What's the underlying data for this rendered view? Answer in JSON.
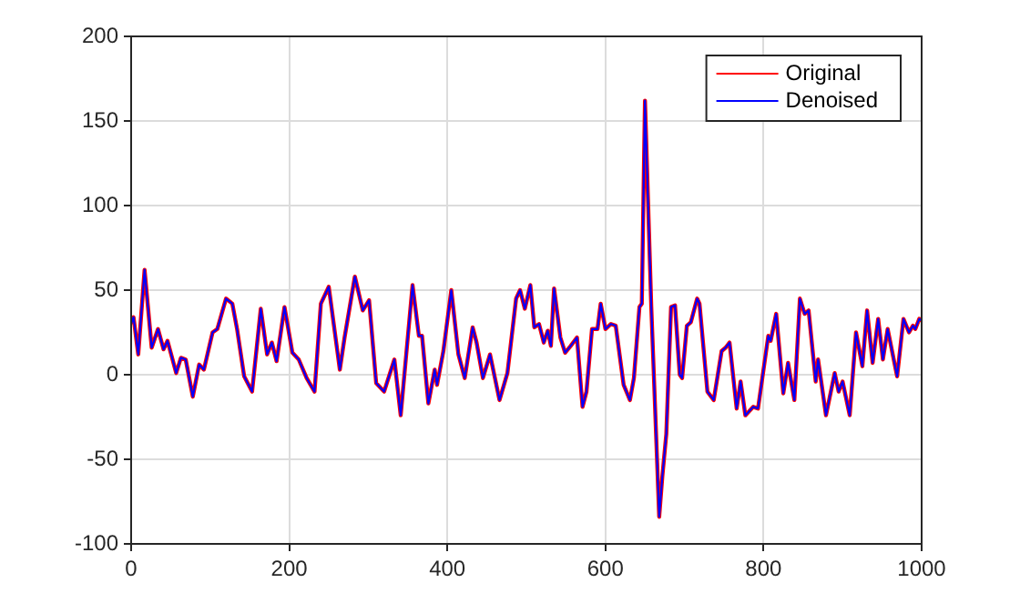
{
  "chart_data": {
    "type": "line",
    "xlim": [
      0,
      1000
    ],
    "xticks": [
      0,
      200,
      400,
      600,
      800,
      1000
    ],
    "ylim": [
      -100,
      200
    ],
    "yticks": [
      -100,
      -50,
      0,
      50,
      100,
      150,
      200
    ],
    "grid": true,
    "legend": "top right",
    "line_style": "solid",
    "marker": "none",
    "x": [
      0,
      3,
      9,
      17,
      26,
      34,
      41,
      46,
      57,
      63,
      69,
      78,
      86,
      92,
      103,
      109,
      120,
      128,
      134,
      143,
      153,
      164,
      172,
      178,
      184,
      194,
      204,
      212,
      222,
      232,
      240,
      250,
      264,
      270,
      283,
      293,
      301,
      310,
      320,
      333,
      341,
      356,
      364,
      368,
      376,
      384,
      387,
      395,
      405,
      414,
      422,
      432,
      437,
      445,
      454,
      466,
      476,
      487,
      492,
      498,
      505,
      510,
      516,
      522,
      527,
      531,
      535,
      543,
      549,
      556,
      564,
      571,
      576,
      583,
      590,
      594,
      600,
      607,
      613,
      623,
      631,
      636,
      643,
      646,
      650,
      658,
      668,
      672,
      677,
      683,
      688,
      694,
      697,
      703,
      708,
      716,
      719,
      729,
      737,
      747,
      752,
      757,
      766,
      771,
      777,
      787,
      793,
      806,
      809,
      816,
      825,
      831,
      839,
      846,
      852,
      857,
      866,
      869,
      879,
      890,
      895,
      900,
      909,
      917,
      925,
      931,
      938,
      945,
      951,
      957,
      969,
      977,
      984,
      989,
      992,
      997,
      1000
    ],
    "series": [
      {
        "name": "Original",
        "color": "#ff0000",
        "values": [
          30,
          34,
          12,
          62,
          16,
          27,
          15,
          20,
          1,
          10,
          9,
          -13,
          6,
          3,
          25,
          27,
          45,
          42,
          27,
          -1,
          -10,
          39,
          12,
          19,
          8,
          40,
          13,
          9,
          -2,
          -10,
          42,
          52,
          3,
          22,
          58,
          38,
          44,
          -5,
          -10,
          9,
          -24,
          53,
          23,
          23,
          -17,
          3,
          -6,
          14,
          50,
          12,
          -2,
          28,
          19,
          -2,
          12,
          -15,
          1,
          45,
          50,
          39,
          53,
          28,
          30,
          19,
          26,
          17,
          51,
          22,
          13,
          17,
          22,
          -19,
          -10,
          27,
          27,
          42,
          27,
          30,
          29,
          -6,
          -15,
          -2,
          40,
          42,
          162,
          40,
          -84,
          -60,
          -35,
          40,
          41,
          0,
          -2,
          29,
          31,
          45,
          42,
          -10,
          -15,
          14,
          16,
          19,
          -20,
          -4,
          -24,
          -19,
          -20,
          23,
          20,
          36,
          -11,
          7,
          -15,
          45,
          36,
          38,
          -4,
          9,
          -24,
          1,
          -10,
          -4,
          -24,
          25,
          5,
          38,
          7,
          33,
          9,
          27,
          -1,
          33,
          25,
          29,
          27,
          33,
          32
        ]
      },
      {
        "name": "Denoised",
        "color": "#0000ff",
        "values": [
          30,
          34,
          12,
          62,
          16,
          27,
          15,
          20,
          1,
          10,
          9,
          -13,
          6,
          3,
          25,
          27,
          45,
          42,
          27,
          -1,
          -10,
          39,
          12,
          19,
          8,
          40,
          13,
          9,
          -2,
          -10,
          42,
          52,
          3,
          22,
          58,
          38,
          44,
          -5,
          -10,
          9,
          -24,
          53,
          23,
          23,
          -17,
          3,
          -6,
          14,
          50,
          12,
          -2,
          28,
          19,
          -2,
          12,
          -15,
          1,
          45,
          50,
          39,
          53,
          28,
          30,
          19,
          26,
          17,
          51,
          22,
          13,
          17,
          22,
          -19,
          -10,
          27,
          27,
          42,
          27,
          30,
          29,
          -6,
          -15,
          -2,
          40,
          42,
          162,
          40,
          -84,
          -60,
          -35,
          40,
          41,
          0,
          -2,
          29,
          31,
          45,
          42,
          -10,
          -15,
          14,
          16,
          19,
          -20,
          -4,
          -24,
          -19,
          -20,
          23,
          20,
          36,
          -11,
          7,
          -15,
          45,
          36,
          38,
          -4,
          9,
          -24,
          1,
          -10,
          -4,
          -24,
          25,
          5,
          38,
          7,
          33,
          9,
          27,
          -1,
          33,
          25,
          29,
          27,
          33,
          32
        ]
      }
    ]
  }
}
